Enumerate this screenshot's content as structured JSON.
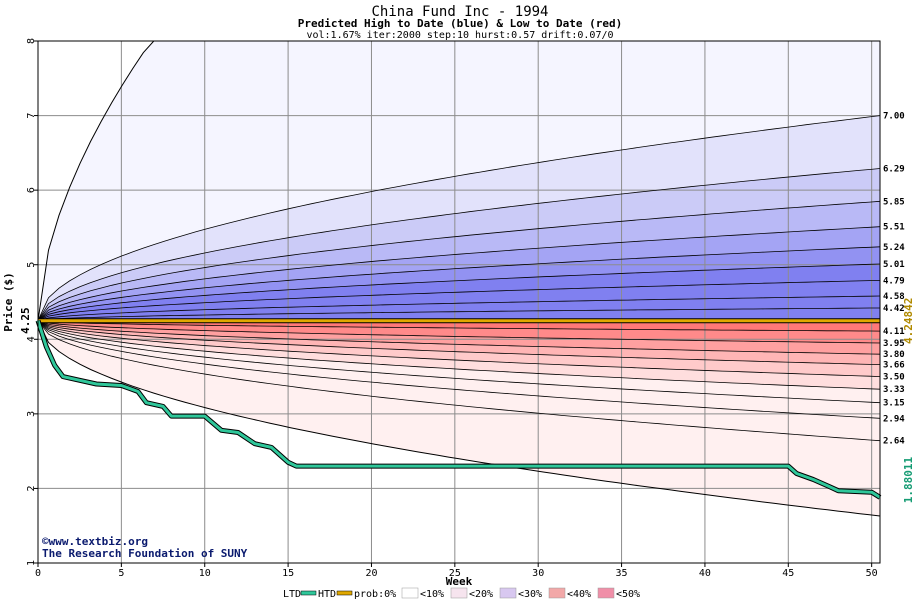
{
  "chart_data": {
    "type": "area",
    "title": "China Fund Inc - 1994",
    "subtitle": "Predicted High to Date (blue) &  Low to Date (red)",
    "params": "vol:1.67% iter:2000 step:10 hurst:0.57 drift:0.07/0",
    "xlabel": "Week",
    "ylabel": "Price ($)",
    "xlim": [
      0,
      50.5
    ],
    "ylim": [
      1,
      8
    ],
    "x_ticks": [
      0,
      5,
      10,
      15,
      20,
      25,
      30,
      35,
      40,
      45,
      50
    ],
    "y_ticks": [
      1,
      2,
      3,
      4,
      5,
      6,
      7,
      8
    ],
    "grid": true,
    "start_price_label": "4.25",
    "start_price": 4.25,
    "current_label": "4.24842",
    "current_value": 4.248,
    "htd_end_label": "1.88011",
    "htd_end_value": 1.88,
    "high_band_levels": [
      {
        "label": "7.00",
        "value": 7.0
      },
      {
        "label": "6.29",
        "value": 6.29
      },
      {
        "label": "5.85",
        "value": 5.85
      },
      {
        "label": "5.51",
        "value": 5.51
      },
      {
        "label": "5.24",
        "value": 5.24
      },
      {
        "label": "5.01",
        "value": 5.01
      },
      {
        "label": "4.79",
        "value": 4.79
      },
      {
        "label": "4.58",
        "value": 4.58
      },
      {
        "label": "4.42",
        "value": 4.42
      }
    ],
    "low_band_levels": [
      {
        "label": "4.11",
        "value": 4.11
      },
      {
        "label": "3.95",
        "value": 3.95
      },
      {
        "label": "3.80",
        "value": 3.8
      },
      {
        "label": "3.66",
        "value": 3.66
      },
      {
        "label": "3.50",
        "value": 3.5
      },
      {
        "label": "3.33",
        "value": 3.33
      },
      {
        "label": "3.15",
        "value": 3.15
      },
      {
        "label": "2.94",
        "value": 2.94
      },
      {
        "label": "2.64",
        "value": 2.64
      }
    ],
    "outer_high_end": 8.0,
    "outer_low_end": 1.63,
    "htd_series": [
      [
        0,
        4.25
      ],
      [
        0.5,
        3.9
      ],
      [
        1,
        3.65
      ],
      [
        1.5,
        3.5
      ],
      [
        2.5,
        3.45
      ],
      [
        3.5,
        3.4
      ],
      [
        5,
        3.38
      ],
      [
        6,
        3.3
      ],
      [
        6.5,
        3.15
      ],
      [
        7.5,
        3.1
      ],
      [
        8,
        2.97
      ],
      [
        10,
        2.97
      ],
      [
        11,
        2.78
      ],
      [
        12,
        2.75
      ],
      [
        13,
        2.6
      ],
      [
        14,
        2.55
      ],
      [
        15,
        2.35
      ],
      [
        15.5,
        2.3
      ],
      [
        30,
        2.3
      ],
      [
        45,
        2.3
      ],
      [
        45.5,
        2.2
      ],
      [
        46.5,
        2.12
      ],
      [
        47.5,
        2.02
      ],
      [
        48,
        1.97
      ],
      [
        50,
        1.95
      ],
      [
        50.5,
        1.88
      ]
    ],
    "legend": {
      "ltd": "LTD",
      "htd": "HTD",
      "prob": "prob:0%",
      "bins": [
        "<10%",
        "<20%",
        "<30%",
        "<40%",
        "<50%"
      ]
    },
    "credit": [
      "©www.textbiz.org",
      "The Research Foundation of SUNY"
    ]
  },
  "colors": {
    "htd_line": "#2fc79a",
    "current_line": "#e0a800",
    "blue_bands": [
      "#f5f5ff",
      "#e2e2fb",
      "#cbcbf7",
      "#b9b9f6",
      "#a4a4f4",
      "#9292f2",
      "#8080f0"
    ],
    "red_bands": [
      "#fff0f0",
      "#ffdede",
      "#ffcaca",
      "#ffb5b5",
      "#ffa0a0",
      "#ff8a8a",
      "#ff7878"
    ],
    "legend_swatches": [
      "#ffffff",
      "#f6e4ee",
      "#d8c8f0",
      "#f2a8a8",
      "#f08fa8"
    ]
  }
}
